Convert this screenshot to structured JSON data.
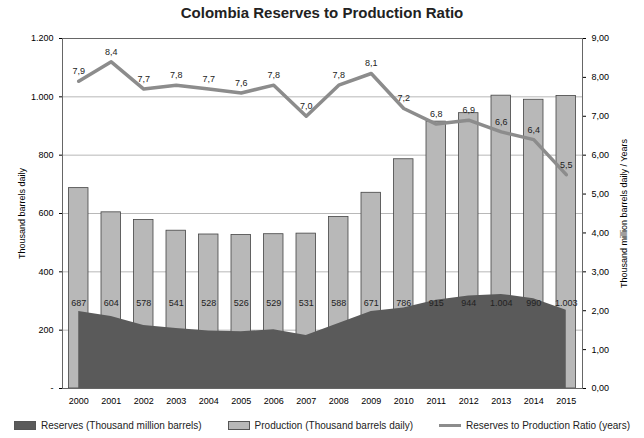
{
  "chart_data": {
    "type": "bar",
    "title": "Colombia Reserves to Production Ratio",
    "categories": [
      "2000",
      "2001",
      "2002",
      "2003",
      "2004",
      "2005",
      "2006",
      "2007",
      "2008",
      "2009",
      "2010",
      "2011",
      "2012",
      "2013",
      "2014",
      "2015"
    ],
    "series": [
      {
        "name": "Reserves (Thousand million barrels)",
        "type": "area",
        "axis": "y2",
        "color": "#5a5a5a",
        "values": [
          1.98,
          1.85,
          1.62,
          1.54,
          1.48,
          1.46,
          1.51,
          1.36,
          1.67,
          1.98,
          2.07,
          2.27,
          2.38,
          2.42,
          2.31,
          2.01
        ]
      },
      {
        "name": "Production (Thousand barrels daily)",
        "type": "bar",
        "color": "#b8b8b8",
        "data_labels": true,
        "values": [
          687,
          604,
          578,
          541,
          528,
          526,
          529,
          531,
          588,
          671,
          786,
          915,
          944,
          1004,
          990,
          1003
        ],
        "value_labels": [
          "687",
          "604",
          "578",
          "541",
          "528",
          "526",
          "529",
          "531",
          "588",
          "671",
          "786",
          "915",
          "944",
          "1.004",
          "990",
          "1.003"
        ]
      },
      {
        "name": "Reserves to Production Ratio  (years)",
        "type": "line",
        "axis": "y2",
        "color": "#8c8c8c",
        "data_labels": true,
        "values": [
          7.9,
          8.4,
          7.7,
          7.8,
          7.7,
          7.6,
          7.8,
          7.0,
          7.8,
          8.1,
          7.2,
          6.8,
          6.9,
          6.6,
          6.4,
          5.5
        ],
        "value_labels": [
          "7,9",
          "8,4",
          "7,7",
          "7,8",
          "7,7",
          "7,6",
          "7,8",
          "7,0",
          "7,8",
          "8,1",
          "7,2",
          "6,8",
          "6,9",
          "6,6",
          "6,4",
          "5,5"
        ]
      }
    ],
    "ylabel": "Thousand barrels daily",
    "y2label": "Thousand million barrels daily / Years",
    "ylim": [
      0,
      1200
    ],
    "yticks": [
      {
        "value": 0,
        "label": "-"
      },
      200,
      400,
      600,
      800,
      {
        "value": 1000,
        "label": "1.000"
      },
      {
        "value": 1200,
        "label": "1.200"
      }
    ],
    "y2lim": [
      0,
      9
    ],
    "y2ticks": [
      {
        "value": 0,
        "label": "0,00"
      },
      {
        "value": 1,
        "label": "1,00"
      },
      {
        "value": 2,
        "label": "2,00"
      },
      {
        "value": 3,
        "label": "3,00"
      },
      {
        "value": 4,
        "label": "4,00"
      },
      {
        "value": 5,
        "label": "5,00"
      },
      {
        "value": 6,
        "label": "6,00"
      },
      {
        "value": 7,
        "label": "7,00"
      },
      {
        "value": 8,
        "label": "8,00"
      },
      {
        "value": 9,
        "label": "9,00"
      }
    ],
    "grid": true,
    "legend": "bottom"
  }
}
